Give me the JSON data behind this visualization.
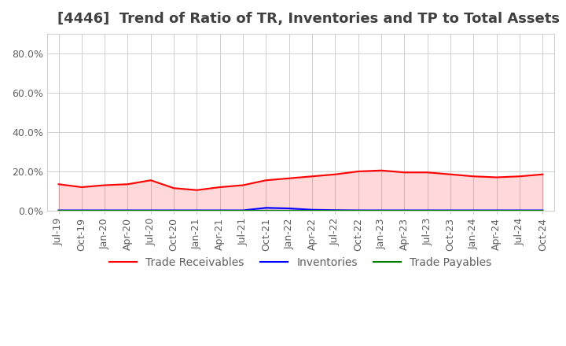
{
  "title": "[4446]  Trend of Ratio of TR, Inventories and TP to Total Assets",
  "title_color": "#404040",
  "title_fontsize": 13,
  "background_color": "#ffffff",
  "grid_color": "#d0d0d0",
  "ylim": [
    0,
    0.9
  ],
  "yticks": [
    0.0,
    0.2,
    0.4,
    0.6,
    0.8
  ],
  "ytick_labels": [
    "0.0%",
    "20.0%",
    "40.0%",
    "60.0%",
    "80.0%"
  ],
  "x_labels": [
    "Jul-19",
    "Oct-19",
    "Jan-20",
    "Apr-20",
    "Jul-20",
    "Oct-20",
    "Jan-21",
    "Apr-21",
    "Jul-21",
    "Oct-21",
    "Jan-22",
    "Apr-22",
    "Jul-22",
    "Oct-22",
    "Jan-23",
    "Apr-23",
    "Jul-23",
    "Oct-23",
    "Jan-24",
    "Apr-24",
    "Jul-24",
    "Oct-24"
  ],
  "trade_receivables": [
    0.135,
    0.12,
    0.13,
    0.135,
    0.155,
    0.115,
    0.105,
    0.12,
    0.13,
    0.155,
    0.165,
    0.175,
    0.185,
    0.2,
    0.205,
    0.195,
    0.195,
    0.185,
    0.175,
    0.17,
    0.175,
    0.185
  ],
  "inventories": [
    0.002,
    0.002,
    0.002,
    0.002,
    0.002,
    0.002,
    0.002,
    0.002,
    0.002,
    0.015,
    0.012,
    0.005,
    0.003,
    0.002,
    0.002,
    0.002,
    0.002,
    0.002,
    0.002,
    0.002,
    0.002,
    0.002
  ],
  "trade_payables": [
    0.001,
    0.001,
    0.001,
    0.001,
    0.001,
    0.001,
    0.001,
    0.001,
    0.001,
    0.001,
    0.001,
    0.001,
    0.001,
    0.001,
    0.001,
    0.001,
    0.001,
    0.001,
    0.001,
    0.001,
    0.001,
    0.001
  ],
  "tr_color": "#ff0000",
  "inv_color": "#0000ff",
  "tp_color": "#008000",
  "line_width": 1.5,
  "legend_labels": [
    "Trade Receivables",
    "Inventories",
    "Trade Payables"
  ],
  "legend_fontsize": 10,
  "tick_fontsize": 9,
  "tick_color": "#606060"
}
